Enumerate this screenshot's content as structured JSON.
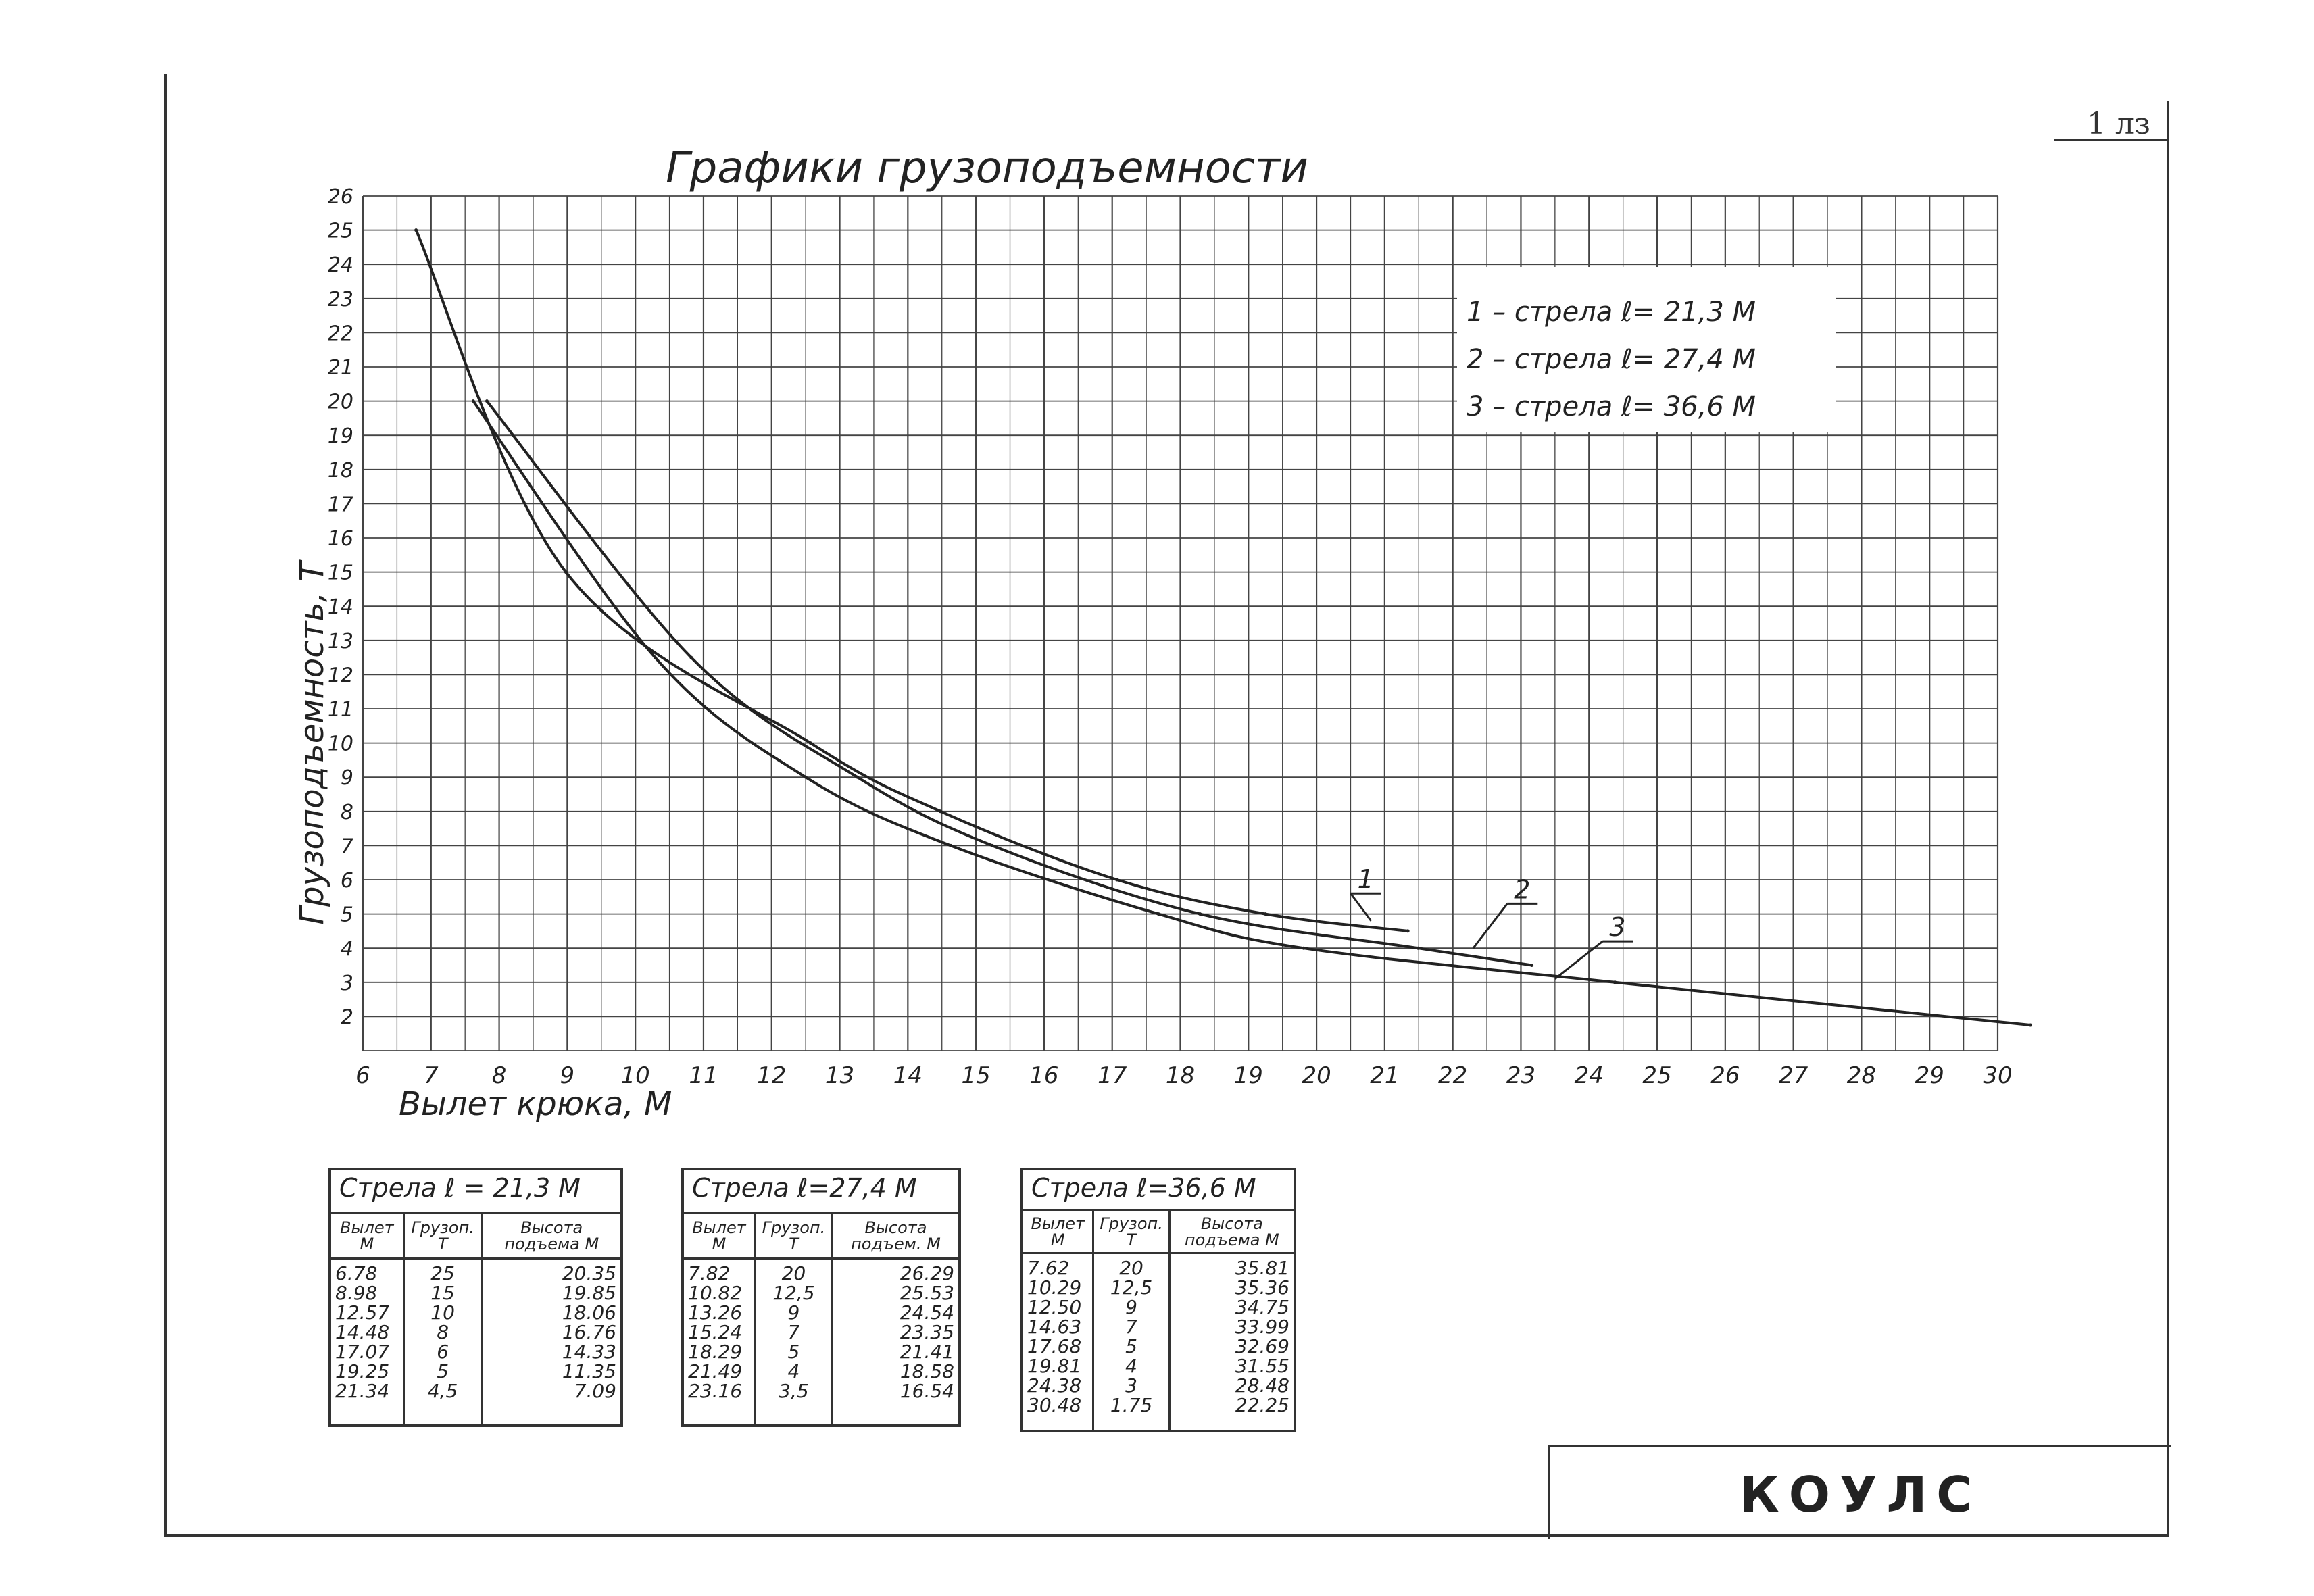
{
  "sheet_number": "1 лз",
  "stamp": "КОУЛС",
  "chart_data": {
    "type": "line",
    "title": "Графики грузоподъемности",
    "xlabel": "Вылет крюка, М",
    "ylabel": "Грузоподъемность, Т",
    "xlim": [
      6,
      30
    ],
    "ylim": [
      1,
      26
    ],
    "x_ticks": [
      "6",
      "7",
      "8",
      "9",
      "10",
      "11",
      "12",
      "13",
      "14",
      "15",
      "16",
      "17",
      "18",
      "19",
      "20",
      "21",
      "22",
      "23",
      "24",
      "25",
      "26",
      "27",
      "28",
      "29",
      "30"
    ],
    "y_ticks": [
      "2",
      "3",
      "4",
      "5",
      "6",
      "7",
      "8",
      "9",
      "10",
      "11",
      "12",
      "13",
      "14",
      "15",
      "16",
      "17",
      "18",
      "19",
      "20",
      "21",
      "22",
      "23",
      "24",
      "25",
      "26"
    ],
    "grid": true,
    "legend": {
      "position": "top-right",
      "entries": [
        "1 – стрела ℓ= 21,3 М",
        "2 – стрела ℓ= 27,4 М",
        "3 – стрела ℓ= 36,6 М"
      ]
    },
    "series": [
      {
        "name": "1",
        "x": [
          6.78,
          8.98,
          12.57,
          14.48,
          17.07,
          19.25,
          21.34
        ],
        "y": [
          25,
          15,
          10,
          8,
          6,
          5,
          4.5
        ]
      },
      {
        "name": "2",
        "x": [
          7.82,
          10.82,
          13.26,
          15.24,
          18.29,
          21.49,
          23.16
        ],
        "y": [
          20,
          12.5,
          9,
          7,
          5,
          4,
          3.5
        ]
      },
      {
        "name": "3",
        "x": [
          7.62,
          10.29,
          12.5,
          14.63,
          17.68,
          19.81,
          24.38,
          30.48
        ],
        "y": [
          20,
          12.5,
          9,
          7,
          5,
          4,
          3,
          1.75
        ]
      }
    ],
    "annotations": [
      "1",
      "2",
      "3"
    ]
  },
  "tables": [
    {
      "caption": "Стрела ℓ = 21,3 М",
      "headers": [
        "Вылет М",
        "Грузоп. Т",
        "Высота подъема М"
      ],
      "rows": [
        [
          "6.78",
          "25",
          "20.35"
        ],
        [
          "8.98",
          "15",
          "19.85"
        ],
        [
          "12.57",
          "10",
          "18.06"
        ],
        [
          "14.48",
          "8",
          "16.76"
        ],
        [
          "17.07",
          "6",
          "14.33"
        ],
        [
          "19.25",
          "5",
          "11.35"
        ],
        [
          "21.34",
          "4,5",
          "7.09"
        ]
      ]
    },
    {
      "caption": "Стрела ℓ=27,4 М",
      "headers": [
        "Вылет М",
        "Грузоп. Т",
        "Высота подъем. М"
      ],
      "rows": [
        [
          "7.82",
          "20",
          "26.29"
        ],
        [
          "10.82",
          "12,5",
          "25.53"
        ],
        [
          "13.26",
          "9",
          "24.54"
        ],
        [
          "15.24",
          "7",
          "23.35"
        ],
        [
          "18.29",
          "5",
          "21.41"
        ],
        [
          "21.49",
          "4",
          "18.58"
        ],
        [
          "23.16",
          "3,5",
          "16.54"
        ]
      ]
    },
    {
      "caption": "Стрела ℓ=36,6 М",
      "headers": [
        "Вылет М",
        "Грузоп. Т",
        "Высота подъема М"
      ],
      "rows": [
        [
          "7.62",
          "20",
          "35.81"
        ],
        [
          "10.29",
          "12,5",
          "35.36"
        ],
        [
          "12.50",
          "9",
          "34.75"
        ],
        [
          "14.63",
          "7",
          "33.99"
        ],
        [
          "17.68",
          "5",
          "32.69"
        ],
        [
          "19.81",
          "4",
          "31.55"
        ],
        [
          "24.38",
          "3",
          "28.48"
        ],
        [
          "30.48",
          "1.75",
          "22.25"
        ]
      ]
    }
  ]
}
